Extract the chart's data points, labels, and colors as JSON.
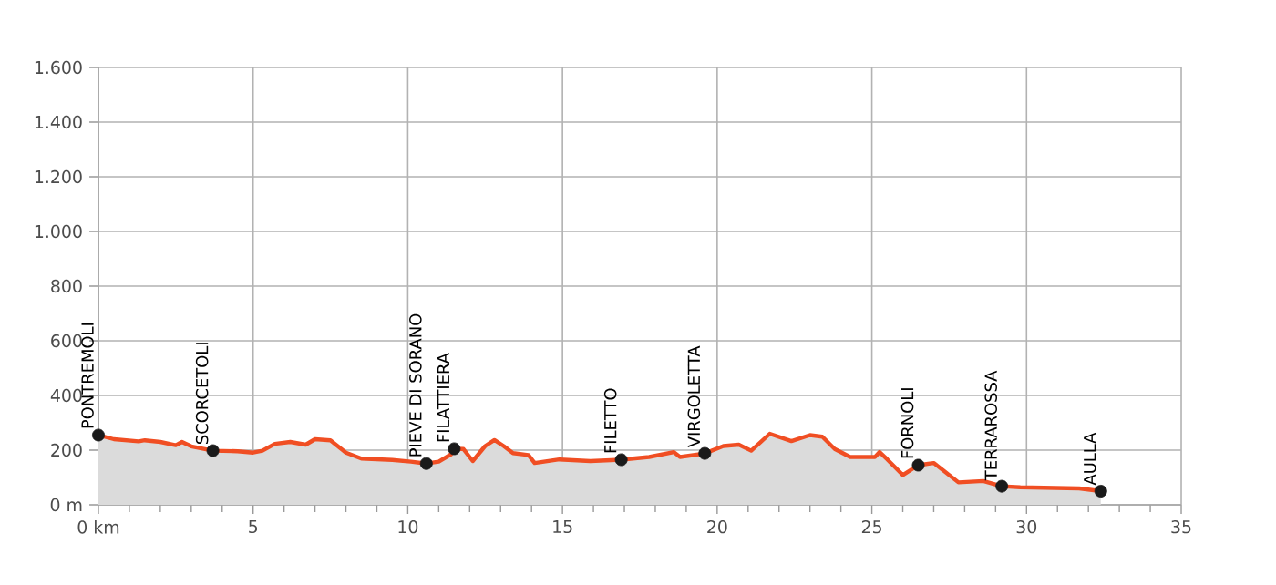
{
  "chart_data": {
    "type": "area",
    "xlim": [
      0,
      35
    ],
    "ylim": [
      0,
      1600
    ],
    "xticks": [
      {
        "value": 0,
        "label": "0 km"
      },
      5,
      10,
      15,
      20,
      25,
      30,
      35
    ],
    "yticks": [
      {
        "value": 0,
        "label": "0 m"
      },
      200,
      400,
      600,
      800,
      {
        "value": 1000,
        "label": "1.000"
      },
      {
        "value": 1200,
        "label": "1.200"
      },
      {
        "value": 1400,
        "label": "1.400"
      },
      {
        "value": 1600,
        "label": "1.600"
      }
    ],
    "grid": true,
    "series": [
      {
        "color": "#f04e23",
        "x": [
          0,
          0.5,
          1.3,
          1.5,
          2,
          2.5,
          2.7,
          3,
          3.7,
          4.5,
          5,
          5.3,
          5.7,
          6.2,
          6.7,
          7,
          7.5,
          8,
          8.5,
          9.5,
          10.1,
          10.6,
          11,
          11.4,
          11.5,
          11.8,
          12.1,
          12.5,
          12.8,
          13.1,
          13.4,
          13.9,
          14.1,
          14.9,
          15.9,
          16.9,
          17.8,
          18.6,
          18.8,
          19.6,
          20.2,
          20.7,
          21.1,
          21.7,
          22.4,
          23.0,
          23.4,
          23.8,
          24.3,
          25.1,
          25.25,
          25.5,
          26.0,
          26.5,
          27.0,
          27.3,
          27.8,
          28.6,
          29.2,
          29.8,
          31.7,
          32.4
        ],
        "values": [
          255,
          240,
          232,
          236,
          230,
          218,
          230,
          214,
          198,
          196,
          191,
          198,
          223,
          230,
          220,
          240,
          236,
          191,
          169,
          164,
          158,
          151,
          158,
          185,
          205,
          204,
          160,
          215,
          237,
          215,
          189,
          182,
          153,
          166,
          160,
          165,
          175,
          193,
          175,
          188,
          215,
          220,
          198,
          260,
          233,
          255,
          249,
          204,
          175,
          175,
          193,
          166,
          109,
          145,
          153,
          127,
          82,
          87,
          68,
          64,
          60,
          50
        ]
      },
      {
        "type": "scatter",
        "color": "#1a1a1a",
        "marker": "circle",
        "x": [
          0,
          3.7,
          10.6,
          11.5,
          16.9,
          19.6,
          26.5,
          29.2,
          32.4
        ],
        "values": [
          255,
          198,
          151,
          205,
          165,
          188,
          145,
          68,
          50
        ]
      }
    ],
    "annotations": [
      {
        "text": "PONTREMOLI",
        "x": 0,
        "y": 255
      },
      {
        "text": "SCORCETOLI",
        "x": 3.7,
        "y": 198
      },
      {
        "text": "PIEVE DI SORANO",
        "x": 10.6,
        "y": 151
      },
      {
        "text": "FILATTIERA",
        "x": 11.5,
        "y": 205
      },
      {
        "text": "FILETTO",
        "x": 16.9,
        "y": 165
      },
      {
        "text": "VIRGOLETTA",
        "x": 19.6,
        "y": 188
      },
      {
        "text": "FORNOLI",
        "x": 26.5,
        "y": 145
      },
      {
        "text": "TERRAROSSA",
        "x": 29.2,
        "y": 68
      },
      {
        "text": "AULLA",
        "x": 32.4,
        "y": 50
      }
    ]
  }
}
